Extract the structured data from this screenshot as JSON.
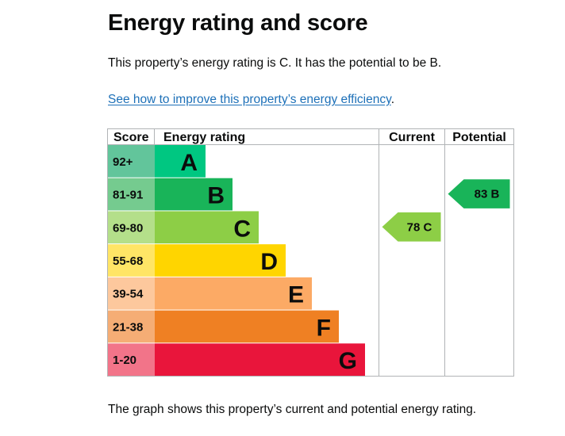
{
  "page": {
    "title": "Energy rating and score",
    "intro": "This property’s energy rating is C. It has the potential to be B.",
    "link_text": "See how to improve this property’s energy efficiency",
    "link_suffix": ".",
    "caption": "The graph shows this property’s current and potential energy rating."
  },
  "chart_data": {
    "type": "table",
    "columns": [
      "Score",
      "Energy rating",
      "Current",
      "Potential"
    ],
    "bands": [
      {
        "letter": "A",
        "score": "92+",
        "color": "#008c5a",
        "bar_color": "#00c781",
        "score_bg": "#62c59b"
      },
      {
        "letter": "B",
        "score": "81-91",
        "color": "#19b459",
        "bar_color": "#19b459",
        "score_bg": "#75cb8f"
      },
      {
        "letter": "C",
        "score": "69-80",
        "color": "#8dce46",
        "bar_color": "#8dce46",
        "score_bg": "#b4df8a"
      },
      {
        "letter": "D",
        "score": "55-68",
        "color": "#ffd500",
        "bar_color": "#ffd500",
        "score_bg": "#ffe566"
      },
      {
        "letter": "E",
        "score": "39-54",
        "color": "#fcaa65",
        "bar_color": "#fcaa65",
        "score_bg": "#fdc89d"
      },
      {
        "letter": "F",
        "score": "21-38",
        "color": "#ef8023",
        "bar_color": "#ef8023",
        "score_bg": "#f5ad75"
      },
      {
        "letter": "G",
        "score": "1-20",
        "color": "#e9153b",
        "bar_color": "#e9153b",
        "score_bg": "#f27489"
      }
    ],
    "current": {
      "score": 78,
      "band": "C",
      "label": "78  C",
      "color": "#8dce46"
    },
    "potential": {
      "score": 83,
      "band": "B",
      "label": "83  B",
      "color": "#19b459"
    }
  }
}
